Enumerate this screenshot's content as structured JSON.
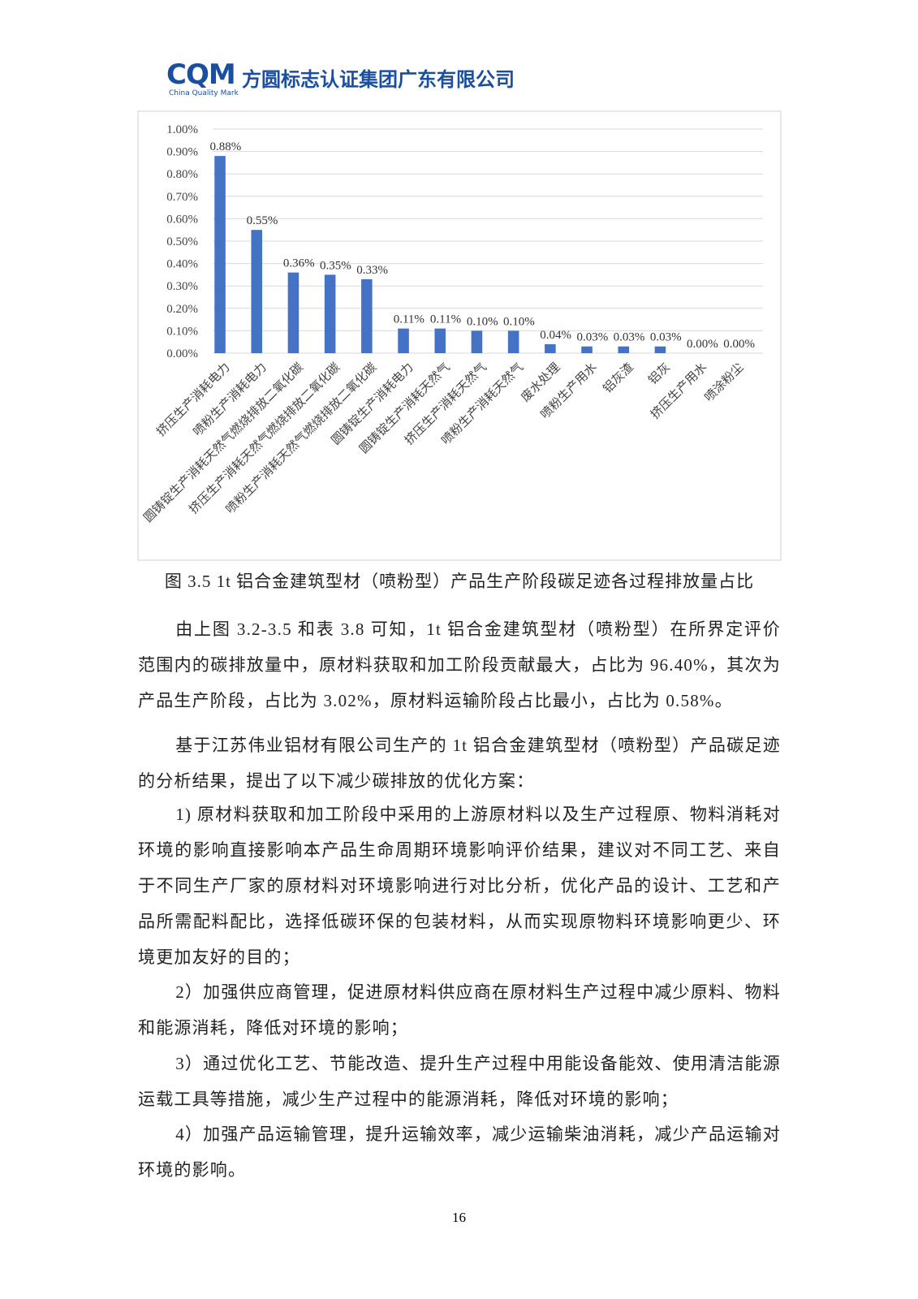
{
  "header": {
    "logo": "CQM",
    "logo_sub": "China Quality Mark",
    "company": "方圆标志认证集团广东有限公司"
  },
  "chart_data": {
    "type": "bar",
    "color": "#4472c4",
    "categories": [
      "挤压生产消耗电力",
      "喷粉生产消耗电力",
      "圆铸锭生产消耗天然气燃烧排放二氧化碳",
      "挤压生产消耗天然气燃烧排放二氧化碳",
      "喷粉生产消耗天然气燃烧排放二氧化碳",
      "圆铸锭生产消耗电力",
      "圆铸锭生产消耗天然气",
      "挤压生产消耗天然气",
      "喷粉生产消耗天然气",
      "废水处理",
      "喷粉生产用水",
      "铝灰渣",
      "铝灰",
      "挤压生产用水",
      "喷涂粉尘"
    ],
    "values": [
      0.88,
      0.55,
      0.36,
      0.35,
      0.33,
      0.11,
      0.11,
      0.1,
      0.1,
      0.04,
      0.03,
      0.03,
      0.03,
      0.0,
      0.0
    ],
    "value_labels": [
      "0.88%",
      "0.55%",
      "0.36%",
      "0.35%",
      "0.33%",
      "0.11%",
      "0.11%",
      "0.10%",
      "0.10%",
      "0.04%",
      "0.03%",
      "0.03%",
      "0.03%",
      "0.00%",
      "0.00%"
    ],
    "ylim": [
      0,
      1
    ],
    "yticks": [
      {
        "value": 0,
        "label": "0.00%"
      },
      {
        "value": 0.1,
        "label": "0.10%"
      },
      {
        "value": 0.2,
        "label": "0.20%"
      },
      {
        "value": 0.3,
        "label": "0.30%"
      },
      {
        "value": 0.4,
        "label": "0.40%"
      },
      {
        "value": 0.5,
        "label": "0.50%"
      },
      {
        "value": 0.6,
        "label": "0.60%"
      },
      {
        "value": 0.7,
        "label": "0.70%"
      },
      {
        "value": 0.8,
        "label": "0.80%"
      },
      {
        "value": 0.9,
        "label": "0.90%"
      },
      {
        "value": 1,
        "label": "1.00%"
      }
    ],
    "grid": true
  },
  "caption": "图 3.5 1t 铝合金建筑型材（喷粉型）产品生产阶段碳足迹各过程排放量占比",
  "paragraphs": [
    "由上图 3.2-3.5 和表 3.8 可知，1t 铝合金建筑型材（喷粉型）在所界定评价范围内的碳排放量中，原材料获取和加工阶段贡献最大，占比为 96.40%，其次为产品生产阶段，占比为 3.02%，原材料运输阶段占比最小，占比为 0.58%。",
    "基于江苏伟业铝材有限公司生产的 1t 铝合金建筑型材（喷粉型）产品碳足迹的分析结果，提出了以下减少碳排放的优化方案：",
    "1) 原材料获取和加工阶段中采用的上游原材料以及生产过程原、物料消耗对环境的影响直接影响本产品生命周期环境影响评价结果，建议对不同工艺、来自于不同生产厂家的原材料对环境影响进行对比分析，优化产品的设计、工艺和产品所需配料配比，选择低碳环保的包装材料，从而实现原物料环境影响更少、环境更加友好的目的；",
    "2）加强供应商管理，促进原材料供应商在原材料生产过程中减少原料、物料和能源消耗，降低对环境的影响；",
    "3）通过优化工艺、节能改造、提升生产过程中用能设备能效、使用清洁能源运载工具等措施，减少生产过程中的能源消耗，降低对环境的影响；",
    "4）加强产品运输管理，提升运输效率，减少运输柴油消耗，减少产品运输对环境的影响。"
  ],
  "page_number": "16"
}
